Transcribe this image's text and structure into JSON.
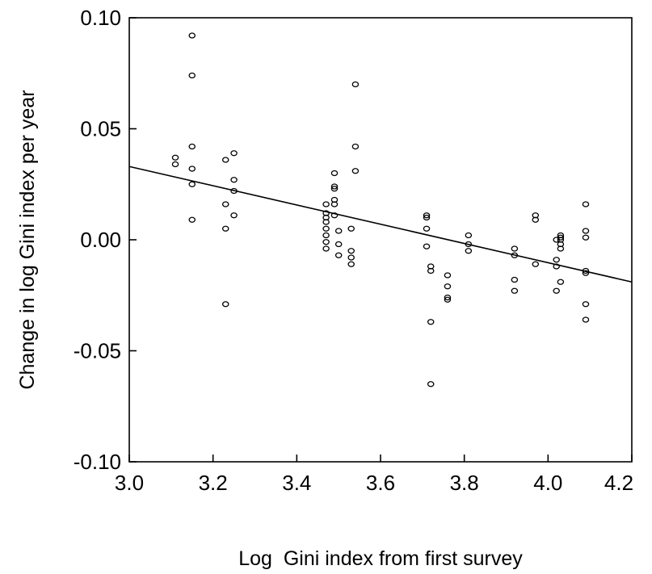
{
  "chart_data": {
    "type": "scatter",
    "xlabel": "Log  Gini index from first survey",
    "ylabel": "Change in log Gini index per year",
    "xlim": [
      3.0,
      4.2
    ],
    "ylim": [
      -0.1,
      0.1
    ],
    "xticks": [
      3.0,
      3.2,
      3.4,
      3.6,
      3.8,
      4.0,
      4.2
    ],
    "yticks": [
      0.1,
      0.05,
      0.0,
      -0.05,
      -0.1
    ],
    "xtick_labels": [
      "3.0",
      "3.2",
      "3.4",
      "3.6",
      "3.8",
      "4.0",
      "4.2"
    ],
    "ytick_labels": [
      "0.10",
      "0.05",
      "0.00",
      "-0.05",
      "-0.10"
    ],
    "grid": false,
    "marker": "open-circle",
    "points": [
      {
        "x": 3.11,
        "y": 0.037
      },
      {
        "x": 3.11,
        "y": 0.034
      },
      {
        "x": 3.15,
        "y": 0.092
      },
      {
        "x": 3.15,
        "y": 0.074
      },
      {
        "x": 3.15,
        "y": 0.042
      },
      {
        "x": 3.15,
        "y": 0.032
      },
      {
        "x": 3.15,
        "y": 0.025
      },
      {
        "x": 3.15,
        "y": 0.009
      },
      {
        "x": 3.23,
        "y": 0.036
      },
      {
        "x": 3.23,
        "y": 0.016
      },
      {
        "x": 3.23,
        "y": 0.005
      },
      {
        "x": 3.23,
        "y": -0.029
      },
      {
        "x": 3.25,
        "y": 0.039
      },
      {
        "x": 3.25,
        "y": 0.027
      },
      {
        "x": 3.25,
        "y": 0.022
      },
      {
        "x": 3.25,
        "y": 0.011
      },
      {
        "x": 3.47,
        "y": 0.016
      },
      {
        "x": 3.47,
        "y": 0.012
      },
      {
        "x": 3.47,
        "y": 0.01
      },
      {
        "x": 3.47,
        "y": 0.008
      },
      {
        "x": 3.47,
        "y": 0.005
      },
      {
        "x": 3.47,
        "y": 0.002
      },
      {
        "x": 3.47,
        "y": -0.001
      },
      {
        "x": 3.47,
        "y": -0.004
      },
      {
        "x": 3.49,
        "y": 0.03
      },
      {
        "x": 3.49,
        "y": 0.024
      },
      {
        "x": 3.49,
        "y": 0.023
      },
      {
        "x": 3.49,
        "y": 0.018
      },
      {
        "x": 3.49,
        "y": 0.016
      },
      {
        "x": 3.49,
        "y": 0.011
      },
      {
        "x": 3.5,
        "y": 0.004
      },
      {
        "x": 3.5,
        "y": -0.002
      },
      {
        "x": 3.5,
        "y": -0.007
      },
      {
        "x": 3.53,
        "y": 0.005
      },
      {
        "x": 3.53,
        "y": -0.005
      },
      {
        "x": 3.53,
        "y": -0.008
      },
      {
        "x": 3.53,
        "y": -0.011
      },
      {
        "x": 3.54,
        "y": 0.07
      },
      {
        "x": 3.54,
        "y": 0.042
      },
      {
        "x": 3.54,
        "y": 0.031
      },
      {
        "x": 3.71,
        "y": 0.011
      },
      {
        "x": 3.71,
        "y": 0.01
      },
      {
        "x": 3.71,
        "y": 0.005
      },
      {
        "x": 3.71,
        "y": -0.003
      },
      {
        "x": 3.72,
        "y": -0.012
      },
      {
        "x": 3.72,
        "y": -0.014
      },
      {
        "x": 3.72,
        "y": -0.037
      },
      {
        "x": 3.72,
        "y": -0.065
      },
      {
        "x": 3.76,
        "y": -0.016
      },
      {
        "x": 3.76,
        "y": -0.021
      },
      {
        "x": 3.76,
        "y": -0.026
      },
      {
        "x": 3.76,
        "y": -0.027
      },
      {
        "x": 3.81,
        "y": 0.002
      },
      {
        "x": 3.81,
        "y": -0.002
      },
      {
        "x": 3.81,
        "y": -0.005
      },
      {
        "x": 3.92,
        "y": -0.004
      },
      {
        "x": 3.92,
        "y": -0.007
      },
      {
        "x": 3.92,
        "y": -0.018
      },
      {
        "x": 3.92,
        "y": -0.023
      },
      {
        "x": 3.97,
        "y": 0.011
      },
      {
        "x": 3.97,
        "y": 0.009
      },
      {
        "x": 3.97,
        "y": -0.011
      },
      {
        "x": 4.02,
        "y": 0.0
      },
      {
        "x": 4.02,
        "y": -0.009
      },
      {
        "x": 4.02,
        "y": -0.012
      },
      {
        "x": 4.02,
        "y": -0.023
      },
      {
        "x": 4.03,
        "y": 0.002
      },
      {
        "x": 4.03,
        "y": 0.001
      },
      {
        "x": 4.03,
        "y": 0.0
      },
      {
        "x": 4.03,
        "y": -0.002
      },
      {
        "x": 4.03,
        "y": -0.004
      },
      {
        "x": 4.03,
        "y": -0.019
      },
      {
        "x": 4.09,
        "y": 0.016
      },
      {
        "x": 4.09,
        "y": 0.004
      },
      {
        "x": 4.09,
        "y": 0.001
      },
      {
        "x": 4.09,
        "y": -0.014
      },
      {
        "x": 4.09,
        "y": -0.015
      },
      {
        "x": 4.09,
        "y": -0.029
      },
      {
        "x": 4.09,
        "y": -0.036
      }
    ],
    "fit_line": {
      "x": [
        3.0,
        4.2
      ],
      "y": [
        0.033,
        -0.019
      ]
    }
  }
}
